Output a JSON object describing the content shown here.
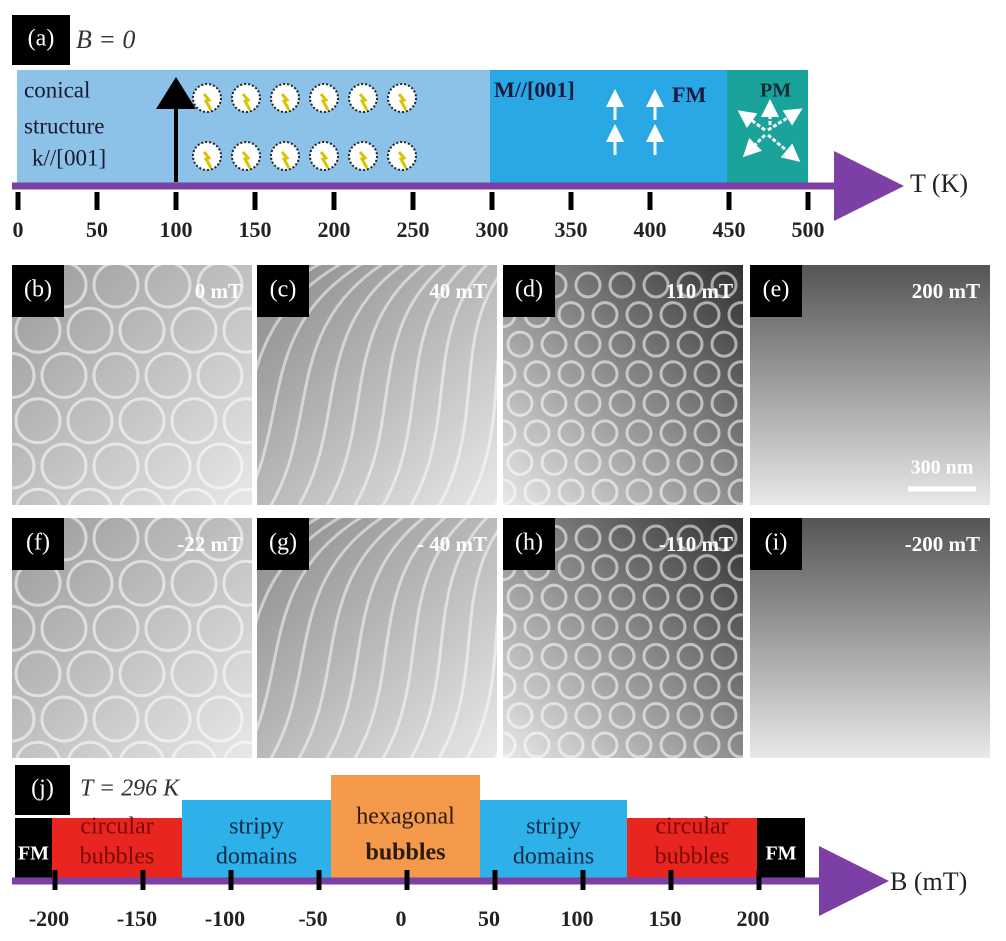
{
  "panel_a": {
    "label": "(a)",
    "condition": "B = 0",
    "axis_label": "T (K)",
    "ticks": [
      0,
      50,
      100,
      150,
      200,
      250,
      300,
      350,
      400,
      450,
      500
    ],
    "regions": [
      {
        "lines": [
          "conical",
          "structure",
          "k//[001]"
        ]
      },
      {
        "lines": [
          "M//[001]",
          "FM"
        ]
      },
      {
        "lines": [
          "PM"
        ]
      }
    ]
  },
  "images": [
    {
      "label": "(b)",
      "field": "0 mT"
    },
    {
      "label": "(c)",
      "field": "40 mT"
    },
    {
      "label": "(d)",
      "field": "110 mT"
    },
    {
      "label": "(e)",
      "field": "200 mT",
      "scale_bar": "300 nm"
    },
    {
      "label": "(f)",
      "field": "-22 mT"
    },
    {
      "label": "(g)",
      "field": "- 40 mT"
    },
    {
      "label": "(h)",
      "field": "-110 mT"
    },
    {
      "label": "(i)",
      "field": "-200 mT"
    }
  ],
  "panel_j": {
    "label": "(j)",
    "condition": "T = 296 K",
    "axis_label": "B (mT)",
    "ticks": [
      -200,
      -150,
      -100,
      -50,
      0,
      50,
      100,
      150,
      200
    ],
    "regions": [
      {
        "lines": [
          "FM"
        ]
      },
      {
        "lines": [
          "circular",
          "bubbles"
        ]
      },
      {
        "lines": [
          "stripy",
          "domains"
        ]
      },
      {
        "lines": [
          "hexagonal",
          "bubbles"
        ]
      },
      {
        "lines": [
          "stripy",
          "domains"
        ]
      },
      {
        "lines": [
          "circular",
          "bubbles"
        ]
      },
      {
        "lines": [
          "FM"
        ]
      }
    ]
  }
}
